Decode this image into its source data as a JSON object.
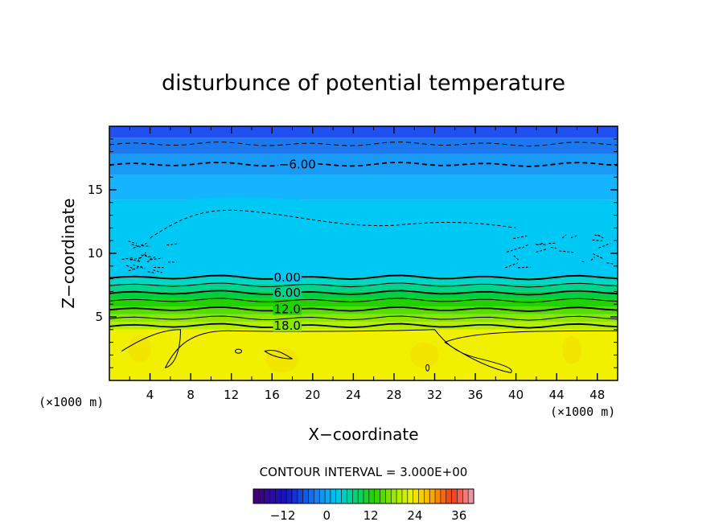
{
  "chart_data": {
    "type": "heatmap",
    "title": "disturbunce of potential temperature",
    "xlabel": "X−coordinate",
    "ylabel": "Z−coordinate",
    "x_units_left": "(×1000 m)",
    "x_units_right": "(×1000 m)",
    "xlim": [
      0,
      50
    ],
    "ylim": [
      0,
      20
    ],
    "x_ticks": [
      4,
      8,
      12,
      16,
      20,
      24,
      28,
      32,
      36,
      40,
      44,
      48
    ],
    "y_ticks": [
      5,
      10,
      15
    ],
    "contour_interval_text": "CONTOUR INTERVAL = 3.000E+00",
    "contour_labels": [
      {
        "text": "−6.00",
        "x": 18.5,
        "z": 17.0
      },
      {
        "text": "0.00",
        "x": 17.5,
        "z": 8.1
      },
      {
        "text": "6.00",
        "x": 17.5,
        "z": 6.9
      },
      {
        "text": "12.0",
        "x": 17.5,
        "z": 5.6
      },
      {
        "text": "18.0",
        "x": 17.5,
        "z": 4.3
      }
    ],
    "levels": [
      {
        "z": 0.0,
        "color": "#f0f000"
      },
      {
        "z": 4.0,
        "color": "#b4ef00"
      },
      {
        "z": 4.6,
        "color": "#8ce600"
      },
      {
        "z": 5.2,
        "color": "#55dd00"
      },
      {
        "z": 5.8,
        "color": "#22d200"
      },
      {
        "z": 6.4,
        "color": "#00cf40"
      },
      {
        "z": 7.0,
        "color": "#00d38c"
      },
      {
        "z": 7.6,
        "color": "#00d6c8"
      },
      {
        "z": 8.2,
        "color": "#00c8f4"
      },
      {
        "z": 14.2,
        "color": "#14b4ff"
      },
      {
        "z": 16.2,
        "color": "#199af4"
      },
      {
        "z": 17.8,
        "color": "#1d78f0"
      },
      {
        "z": 19.1,
        "color": "#2050f0"
      }
    ],
    "colorbar": {
      "min": -20,
      "max": 40,
      "tick_labels": [
        "−12",
        "0",
        "12",
        "24",
        "36"
      ],
      "tick_values": [
        -12,
        0,
        12,
        24,
        36
      ]
    }
  }
}
